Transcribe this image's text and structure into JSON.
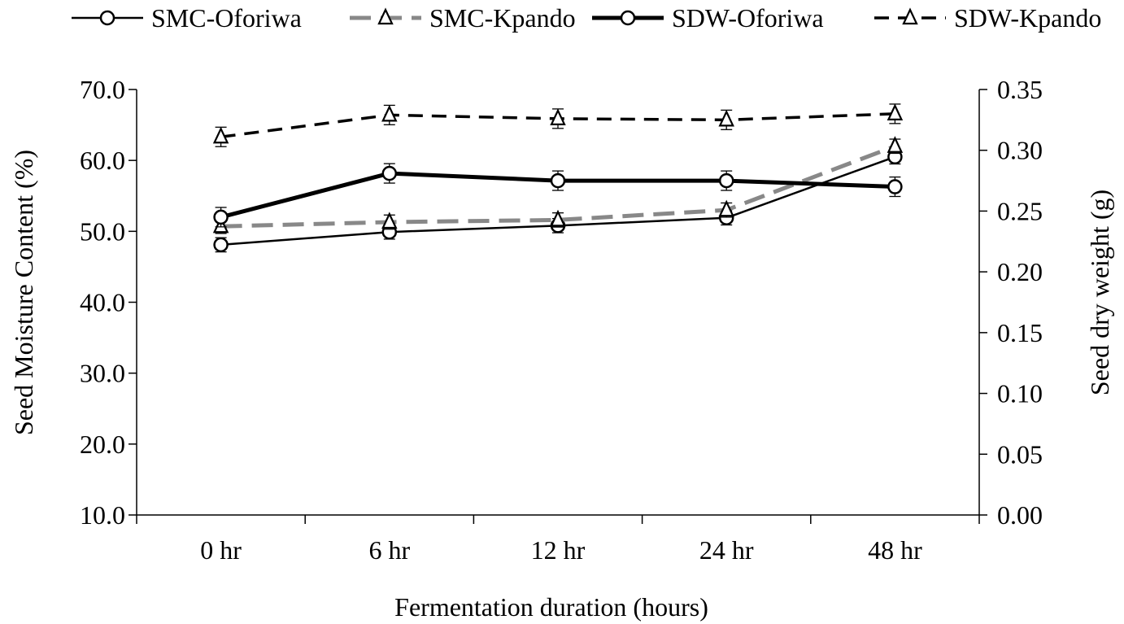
{
  "chart_data": {
    "type": "line",
    "categories": [
      "0 hr",
      "6 hr",
      "12 hr",
      "24 hr",
      "48 hr"
    ],
    "xlabel": "Fermentation duration (hours)",
    "ylabel_left": "Seed Moisture Content (%)",
    "ylabel_right": "Seed dry weight (g)",
    "ylim_left": [
      10.0,
      70.0
    ],
    "ylim_right": [
      0.0,
      0.35
    ],
    "yticks_left": [
      "10.0",
      "20.0",
      "30.0",
      "40.0",
      "50.0",
      "60.0",
      "70.0"
    ],
    "yticks_right": [
      "0.00",
      "0.05",
      "0.10",
      "0.15",
      "0.20",
      "0.25",
      "0.30",
      "0.35"
    ],
    "grid": false,
    "legend_position": "top",
    "series": [
      {
        "name": "SMC-Oforiwa",
        "axis": "left",
        "values": [
          48.1,
          49.9,
          50.8,
          51.9,
          60.5
        ],
        "error": [
          1.0,
          1.0,
          1.0,
          1.0,
          1.0
        ],
        "marker": "circle",
        "dash": "solid",
        "weight": "thin",
        "color": "#000000"
      },
      {
        "name": "SMC-Kpando",
        "axis": "left",
        "values": [
          50.7,
          51.3,
          51.6,
          53.0,
          62.0
        ],
        "error": [
          1.0,
          1.0,
          1.0,
          1.0,
          1.0
        ],
        "marker": "triangle",
        "dash": "dashed",
        "weight": "thick",
        "color": "#888888"
      },
      {
        "name": "SDW-Oforiwa",
        "axis": "right",
        "values": [
          0.245,
          0.281,
          0.275,
          0.275,
          0.27
        ],
        "error": [
          0.008,
          0.008,
          0.008,
          0.008,
          0.008
        ],
        "marker": "circle",
        "dash": "solid",
        "weight": "thick",
        "color": "#000000"
      },
      {
        "name": "SDW-Kpando",
        "axis": "right",
        "values": [
          0.311,
          0.329,
          0.326,
          0.325,
          0.33
        ],
        "error": [
          0.008,
          0.008,
          0.008,
          0.008,
          0.008
        ],
        "marker": "triangle",
        "dash": "dashed",
        "weight": "medium",
        "color": "#000000"
      }
    ]
  }
}
